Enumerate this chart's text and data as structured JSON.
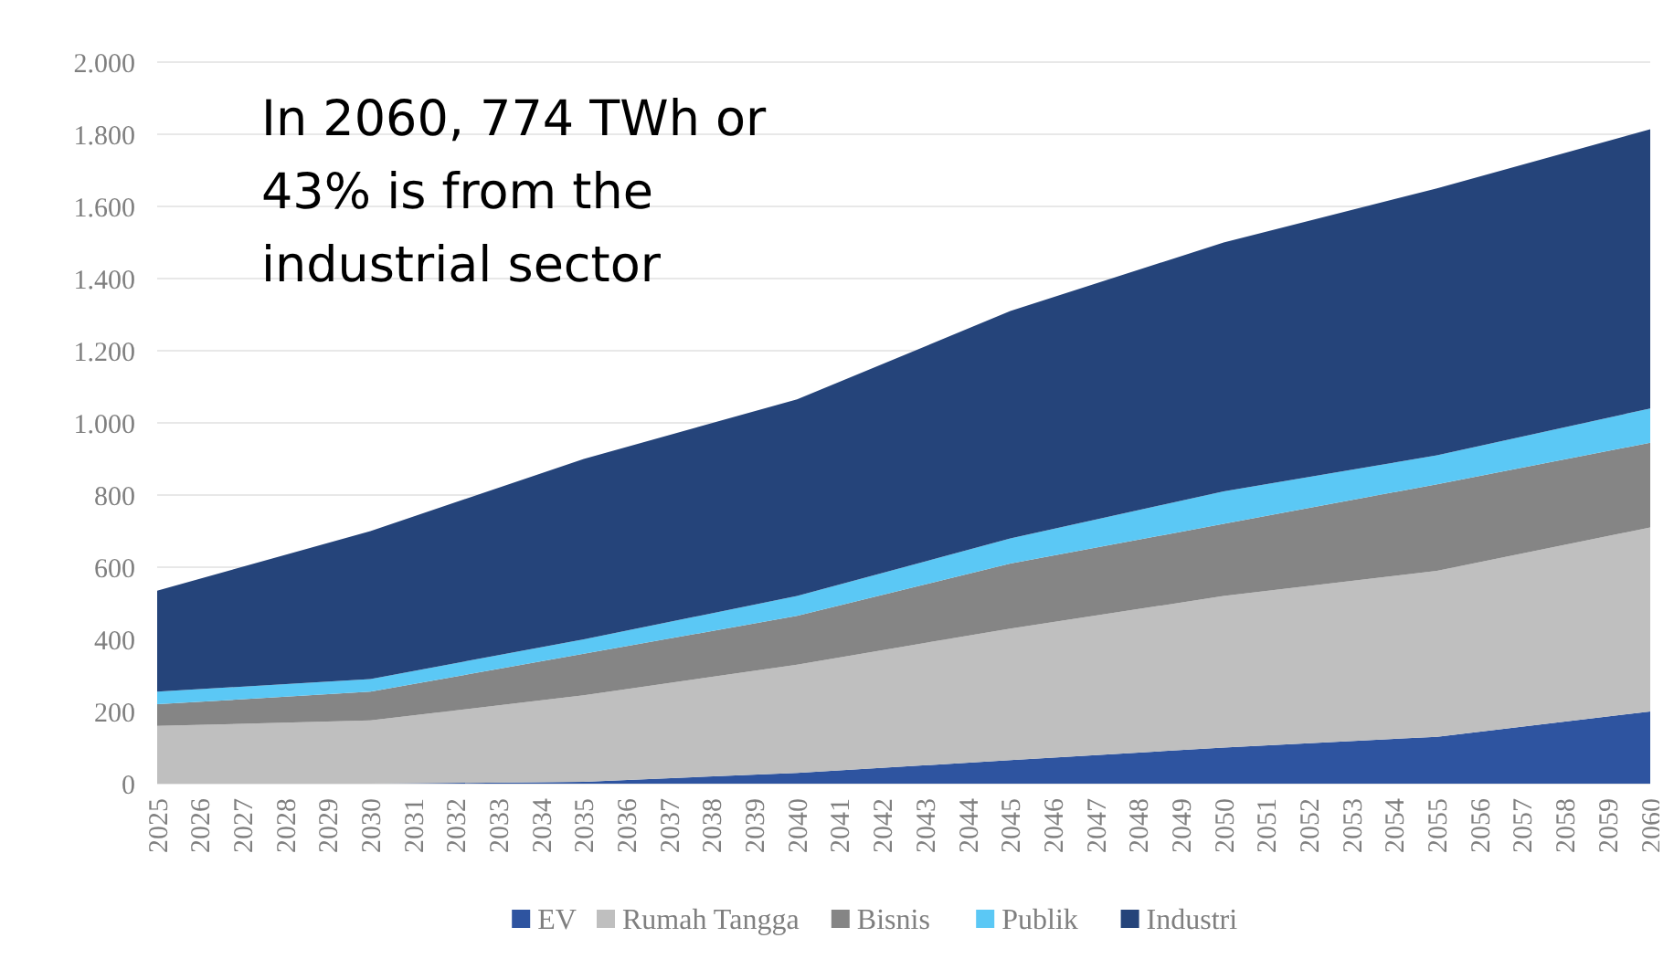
{
  "chart_data": {
    "type": "area",
    "stacked": true,
    "x": [
      2025,
      2030,
      2035,
      2040,
      2045,
      2050,
      2055,
      2060
    ],
    "series": [
      {
        "name": "EV",
        "color": "#2e54a0",
        "values": [
          0,
          0,
          5,
          30,
          65,
          100,
          130,
          200
        ]
      },
      {
        "name": "Rumah Tangga",
        "color": "#bfbfbf",
        "values": [
          160,
          175,
          240,
          300,
          365,
          420,
          460,
          510
        ]
      },
      {
        "name": "Bisnis",
        "color": "#858585",
        "values": [
          60,
          80,
          115,
          135,
          180,
          200,
          240,
          235
        ]
      },
      {
        "name": "Publik",
        "color": "#5bc8f5",
        "values": [
          35,
          35,
          40,
          55,
          70,
          90,
          80,
          95
        ]
      },
      {
        "name": "Industri",
        "color": "#25447a",
        "values": [
          280,
          410,
          500,
          545,
          630,
          690,
          740,
          774
        ]
      }
    ],
    "xlim": [
      2025,
      2060
    ],
    "xticks": [
      2025,
      2026,
      2027,
      2028,
      2029,
      2030,
      2031,
      2032,
      2033,
      2034,
      2035,
      2036,
      2037,
      2038,
      2039,
      2040,
      2041,
      2042,
      2043,
      2044,
      2045,
      2046,
      2047,
      2048,
      2049,
      2050,
      2051,
      2052,
      2053,
      2054,
      2055,
      2056,
      2057,
      2058,
      2059,
      2060
    ],
    "ylim": [
      0,
      2000
    ],
    "yticks": [
      0,
      200,
      400,
      600,
      800,
      {
        "value": 1000,
        "label": "1.000"
      },
      {
        "value": 1200,
        "label": "1.200"
      },
      {
        "value": 1400,
        "label": "1.400"
      },
      {
        "value": 1600,
        "label": "1.600"
      },
      {
        "value": 1800,
        "label": "1.800"
      },
      {
        "value": 2000,
        "label": "2.000"
      }
    ],
    "grid": "y",
    "legend": "bottom",
    "annotations": [
      "In 2060, 774 TWh or 43% is from the industrial sector"
    ]
  }
}
